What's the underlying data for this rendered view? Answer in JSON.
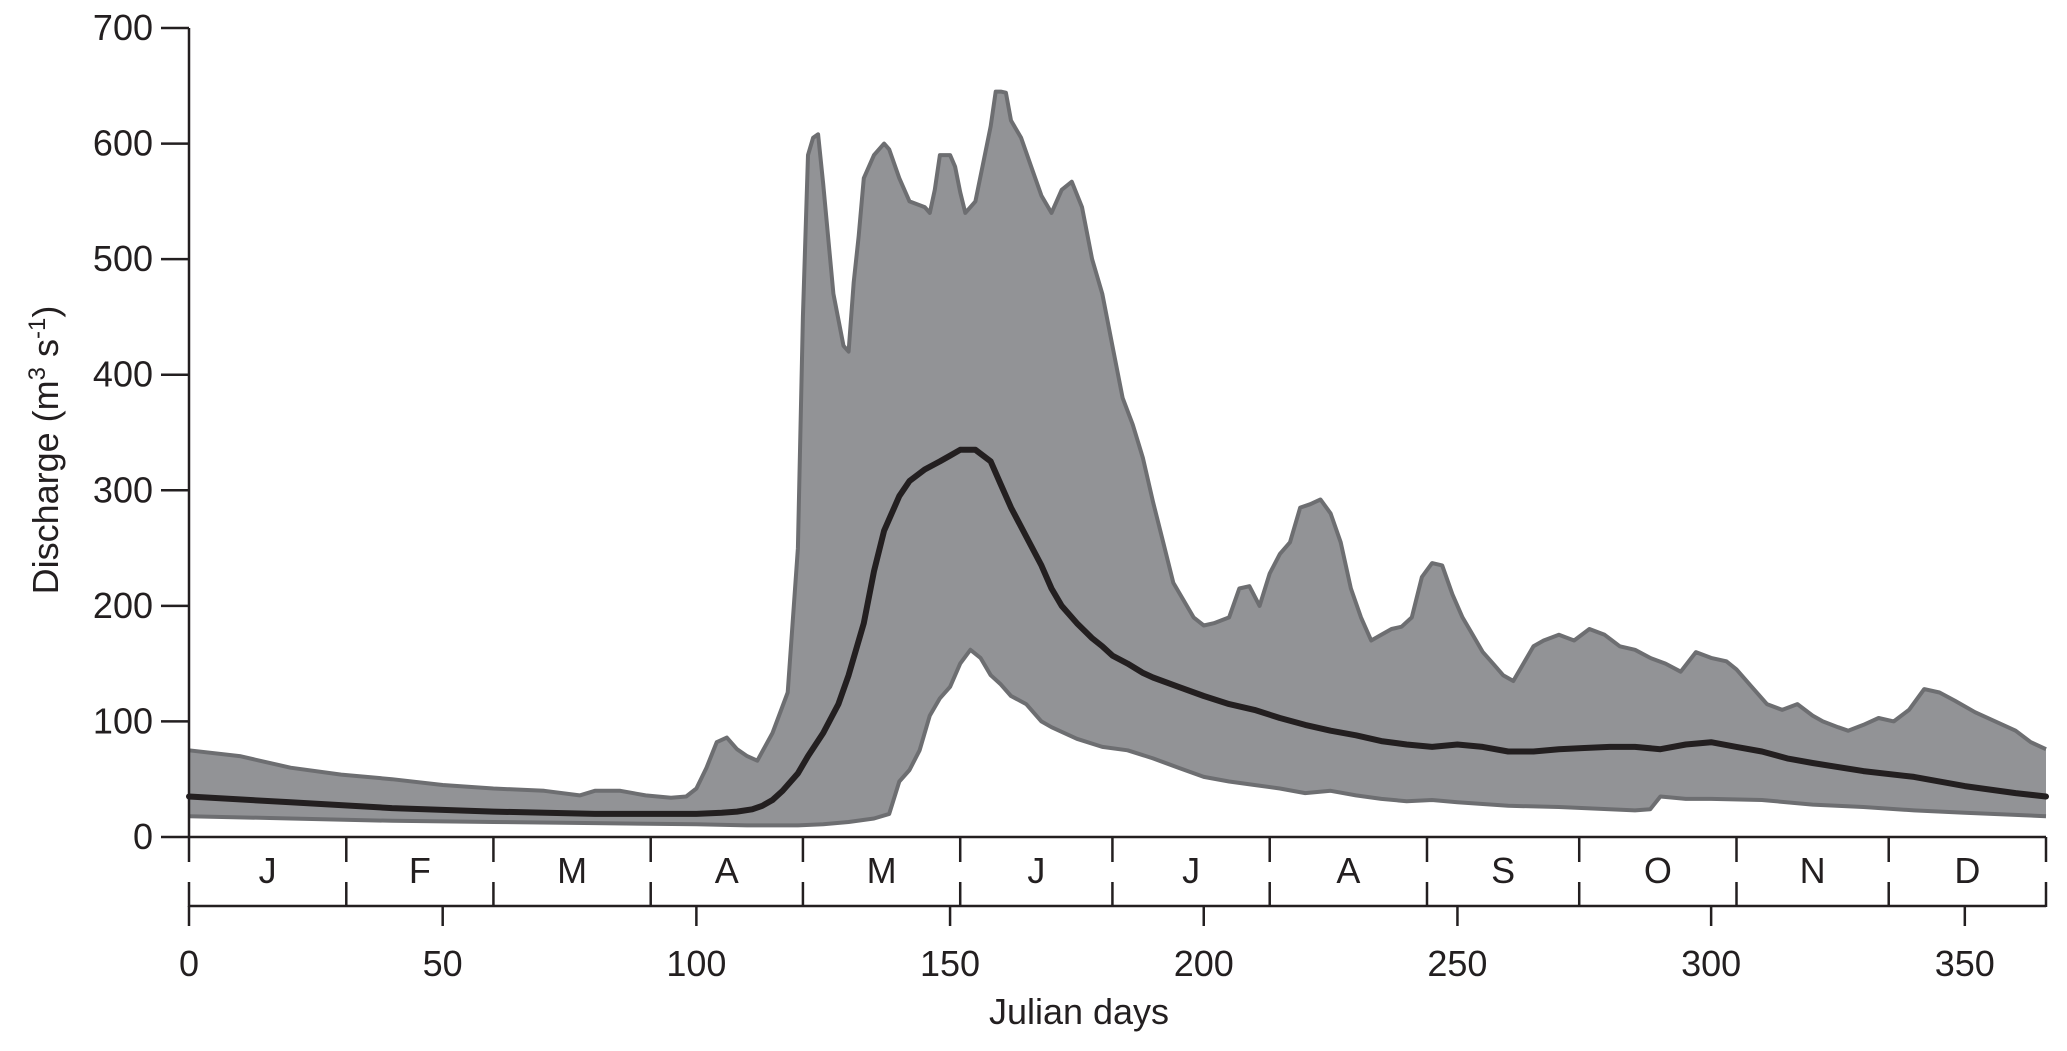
{
  "chart_data": {
    "type": "area",
    "title": "",
    "xlabel": "Julian days",
    "ylabel": {
      "prefix": "Discharge (m",
      "sup1": "3",
      "mid": " s",
      "sup2": "-1",
      "suffix": ")"
    },
    "xlim": [
      0,
      366
    ],
    "ylim": [
      0,
      700
    ],
    "x_ticks": [
      0,
      50,
      100,
      150,
      200,
      250,
      300,
      350
    ],
    "y_ticks": [
      0,
      100,
      200,
      300,
      400,
      500,
      600,
      700
    ],
    "months": {
      "labels": [
        "J",
        "F",
        "M",
        "A",
        "M",
        "J",
        "J",
        "A",
        "S",
        "O",
        "N",
        "D"
      ],
      "boundaries": [
        0,
        31,
        60,
        91,
        121,
        152,
        182,
        213,
        244,
        274,
        305,
        335,
        366
      ]
    },
    "grid": false,
    "legend": "none",
    "colors": {
      "band_fill": "#929396",
      "band_edge": "#6d6e71",
      "mean_line": "#231f20",
      "axis": "#231f20"
    },
    "series": [
      {
        "role": "maximum",
        "x": [
          0,
          10,
          20,
          30,
          40,
          50,
          60,
          70,
          77,
          80,
          85,
          90,
          95,
          98,
          100,
          102,
          104,
          106,
          108,
          110,
          112,
          115,
          118,
          120,
          121,
          122,
          123,
          124,
          125,
          127,
          129,
          130,
          131,
          132,
          133,
          135,
          137,
          138,
          140,
          142,
          145,
          146,
          147,
          148,
          150,
          151,
          152,
          153,
          155,
          158,
          159,
          160,
          161,
          162,
          164,
          166,
          168,
          170,
          172,
          174,
          176,
          178,
          180,
          182,
          184,
          186,
          188,
          190,
          192,
          194,
          196,
          198,
          200,
          202,
          205,
          207,
          209,
          211,
          213,
          215,
          217,
          219,
          221,
          222,
          223,
          225,
          227,
          229,
          231,
          233,
          235,
          237,
          239,
          241,
          243,
          245,
          247,
          249,
          251,
          253,
          255,
          257,
          259,
          261,
          263,
          265,
          267,
          270,
          273,
          276,
          279,
          282,
          285,
          288,
          291,
          294,
          297,
          300,
          303,
          305,
          308,
          311,
          314,
          317,
          320,
          322,
          325,
          327,
          330,
          333,
          336,
          339,
          342,
          345,
          348,
          352,
          356,
          360,
          363,
          366
        ],
        "values": [
          75,
          70,
          60,
          54,
          50,
          45,
          42,
          40,
          36,
          40,
          40,
          36,
          34,
          35,
          42,
          60,
          82,
          86,
          76,
          70,
          66,
          90,
          125,
          250,
          450,
          590,
          605,
          608,
          565,
          470,
          425,
          420,
          480,
          520,
          570,
          590,
          600,
          595,
          570,
          550,
          545,
          540,
          560,
          590,
          590,
          580,
          558,
          540,
          550,
          615,
          645,
          645,
          644,
          620,
          605,
          580,
          555,
          540,
          560,
          567,
          545,
          500,
          470,
          425,
          380,
          357,
          328,
          290,
          255,
          220,
          205,
          190,
          183,
          185,
          190,
          215,
          217,
          200,
          228,
          245,
          255,
          285,
          288,
          290,
          292,
          280,
          255,
          215,
          190,
          170,
          175,
          180,
          182,
          190,
          225,
          237,
          235,
          210,
          190,
          175,
          160,
          150,
          140,
          135,
          150,
          165,
          170,
          175,
          170,
          180,
          175,
          165,
          162,
          155,
          150,
          143,
          160,
          155,
          152,
          145,
          130,
          115,
          110,
          115,
          105,
          100,
          95,
          92,
          97,
          103,
          100,
          110,
          128,
          125,
          118,
          108,
          100,
          92,
          82,
          76
        ],
        "name": ""
      },
      {
        "role": "mean",
        "x": [
          0,
          20,
          40,
          60,
          80,
          90,
          100,
          105,
          108,
          111,
          113,
          115,
          117,
          120,
          122,
          125,
          128,
          130,
          133,
          135,
          137,
          140,
          142,
          145,
          148,
          150,
          152,
          155,
          158,
          160,
          162,
          165,
          168,
          170,
          172,
          175,
          178,
          180,
          182,
          185,
          188,
          190,
          195,
          200,
          205,
          210,
          215,
          220,
          225,
          230,
          235,
          240,
          245,
          250,
          255,
          260,
          265,
          270,
          275,
          280,
          285,
          290,
          295,
          300,
          305,
          310,
          315,
          320,
          330,
          340,
          350,
          360,
          366
        ],
        "values": [
          35,
          30,
          25,
          22,
          20,
          20,
          20,
          21,
          22,
          24,
          27,
          32,
          40,
          55,
          70,
          90,
          115,
          140,
          185,
          230,
          265,
          295,
          308,
          318,
          325,
          330,
          335,
          335,
          325,
          305,
          285,
          260,
          235,
          215,
          200,
          185,
          172,
          165,
          157,
          150,
          142,
          138,
          130,
          122,
          115,
          110,
          103,
          97,
          92,
          88,
          83,
          80,
          78,
          80,
          78,
          74,
          74,
          76,
          77,
          78,
          78,
          76,
          80,
          82,
          78,
          74,
          68,
          64,
          57,
          52,
          44,
          38,
          35
        ],
        "name": ""
      },
      {
        "role": "minimum",
        "x": [
          0,
          20,
          40,
          60,
          80,
          100,
          110,
          120,
          125,
          130,
          135,
          138,
          140,
          142,
          144,
          146,
          148,
          150,
          152,
          154,
          156,
          158,
          160,
          162,
          165,
          168,
          170,
          175,
          180,
          185,
          190,
          195,
          200,
          205,
          210,
          215,
          220,
          225,
          230,
          235,
          240,
          245,
          250,
          260,
          270,
          275,
          280,
          285,
          288,
          290,
          295,
          300,
          310,
          320,
          330,
          340,
          350,
          366
        ],
        "values": [
          18,
          16,
          14,
          13,
          12,
          11,
          10,
          10,
          11,
          13,
          16,
          20,
          48,
          58,
          75,
          105,
          120,
          130,
          150,
          162,
          155,
          140,
          132,
          122,
          115,
          100,
          95,
          85,
          78,
          75,
          68,
          60,
          52,
          48,
          45,
          42,
          38,
          40,
          36,
          33,
          31,
          32,
          30,
          27,
          26,
          25,
          24,
          23,
          24,
          35,
          33,
          33,
          32,
          28,
          26,
          23,
          21,
          18
        ],
        "name": ""
      }
    ]
  }
}
